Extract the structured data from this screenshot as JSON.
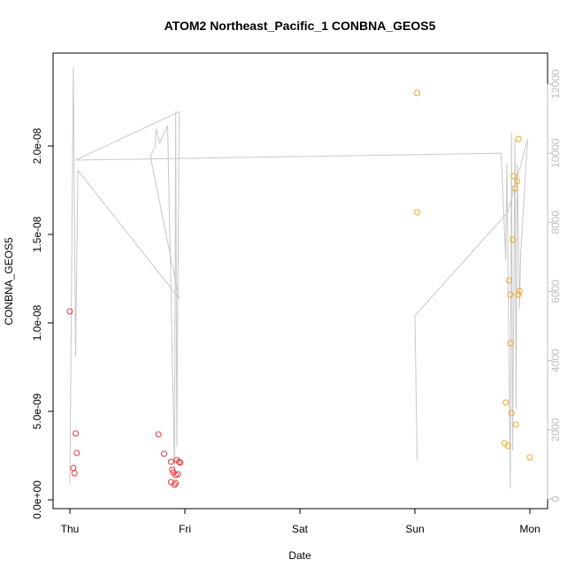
{
  "chart_data": {
    "type": "scatter",
    "title": "ATOM2 Northeast_Pacific_1 CONBNA_GEOS5",
    "xlabel": "Date",
    "ylabel": "CONBNA_GEOS5",
    "x_ticks": [
      "Thu",
      "Fri",
      "Sat",
      "Sun",
      "Mon"
    ],
    "y_ticks": [
      "0.0e+00",
      "5.0e-09",
      "1.0e-08",
      "1.5e-08",
      "2.0e-08"
    ],
    "y2_ticks": [
      "0",
      "2000",
      "4000",
      "6000",
      "8000",
      "10000",
      "12000"
    ],
    "xlim": [
      0,
      4.12
    ],
    "ylim": [
      0,
      2.4e-08
    ],
    "y2lim": [
      0,
      12500
    ],
    "colors": {
      "red": "#e8393b",
      "orange": "#f5a623",
      "line": "#c8c8c8",
      "axis": "#000000",
      "right_axis": "#bebebe"
    },
    "series": [
      {
        "color": "red",
        "points": [
          [
            0.0,
            1.065e-08
          ],
          [
            0.03,
            1.8e-09
          ],
          [
            0.04,
            1.5e-09
          ],
          [
            0.05,
            3.75e-09
          ],
          [
            0.06,
            2.65e-09
          ],
          [
            0.77,
            3.7e-09
          ],
          [
            0.82,
            2.6e-09
          ],
          [
            0.88,
            1e-09
          ],
          [
            0.88,
            2.15e-09
          ],
          [
            0.89,
            1.7e-09
          ],
          [
            0.9,
            1.55e-09
          ],
          [
            0.91,
            8.5e-10
          ],
          [
            0.92,
            9.5e-10
          ],
          [
            0.92,
            1.4e-09
          ],
          [
            0.93,
            2.25e-09
          ],
          [
            0.94,
            1.45e-09
          ],
          [
            0.95,
            2.15e-09
          ],
          [
            0.96,
            2.1e-09
          ]
        ]
      },
      {
        "color": "orange",
        "points": [
          [
            3.02,
            2.3e-08
          ],
          [
            3.02,
            1.625e-08
          ],
          [
            3.78,
            3.2e-09
          ],
          [
            3.79,
            5.5e-09
          ],
          [
            3.81,
            3.05e-09
          ],
          [
            3.82,
            1.24e-08
          ],
          [
            3.83,
            1.16e-08
          ],
          [
            3.83,
            8.85e-09
          ],
          [
            3.84,
            4.9e-09
          ],
          [
            3.85,
            1.47e-08
          ],
          [
            3.86,
            1.83e-08
          ],
          [
            3.87,
            1.76e-08
          ],
          [
            3.88,
            4.25e-09
          ],
          [
            3.89,
            1.8e-08
          ],
          [
            3.9,
            2.04e-08
          ],
          [
            3.91,
            1.18e-08
          ],
          [
            3.9,
            1.16e-08
          ],
          [
            4.0,
            2.4e-09
          ]
        ]
      }
    ],
    "altitude_line": [
      [
        0.0,
        400
      ],
      [
        0.03,
        12500
      ],
      [
        0.05,
        4100
      ],
      [
        0.07,
        9500
      ],
      [
        0.95,
        5800
      ],
      [
        0.7,
        9900
      ],
      [
        0.74,
        10200
      ],
      [
        0.75,
        10700
      ],
      [
        0.78,
        10300
      ],
      [
        0.85,
        10800
      ],
      [
        0.91,
        800
      ],
      [
        0.92,
        11200
      ],
      [
        0.93,
        1500
      ],
      [
        0.95,
        11200
      ],
      [
        0.05,
        9800
      ],
      [
        3.75,
        10000
      ],
      [
        3.79,
        6900
      ],
      [
        3.8,
        9700
      ],
      [
        3.83,
        300
      ],
      [
        3.84,
        10600
      ],
      [
        3.85,
        1400
      ],
      [
        3.87,
        10400
      ],
      [
        3.88,
        2600
      ],
      [
        3.89,
        9700
      ],
      [
        3.91,
        5500
      ],
      [
        3.92,
        7100
      ],
      [
        3.98,
        10400
      ],
      [
        3.9,
        9400
      ],
      [
        3.81,
        8300
      ],
      [
        3.0,
        5300
      ],
      [
        3.02,
        1100
      ]
    ]
  }
}
